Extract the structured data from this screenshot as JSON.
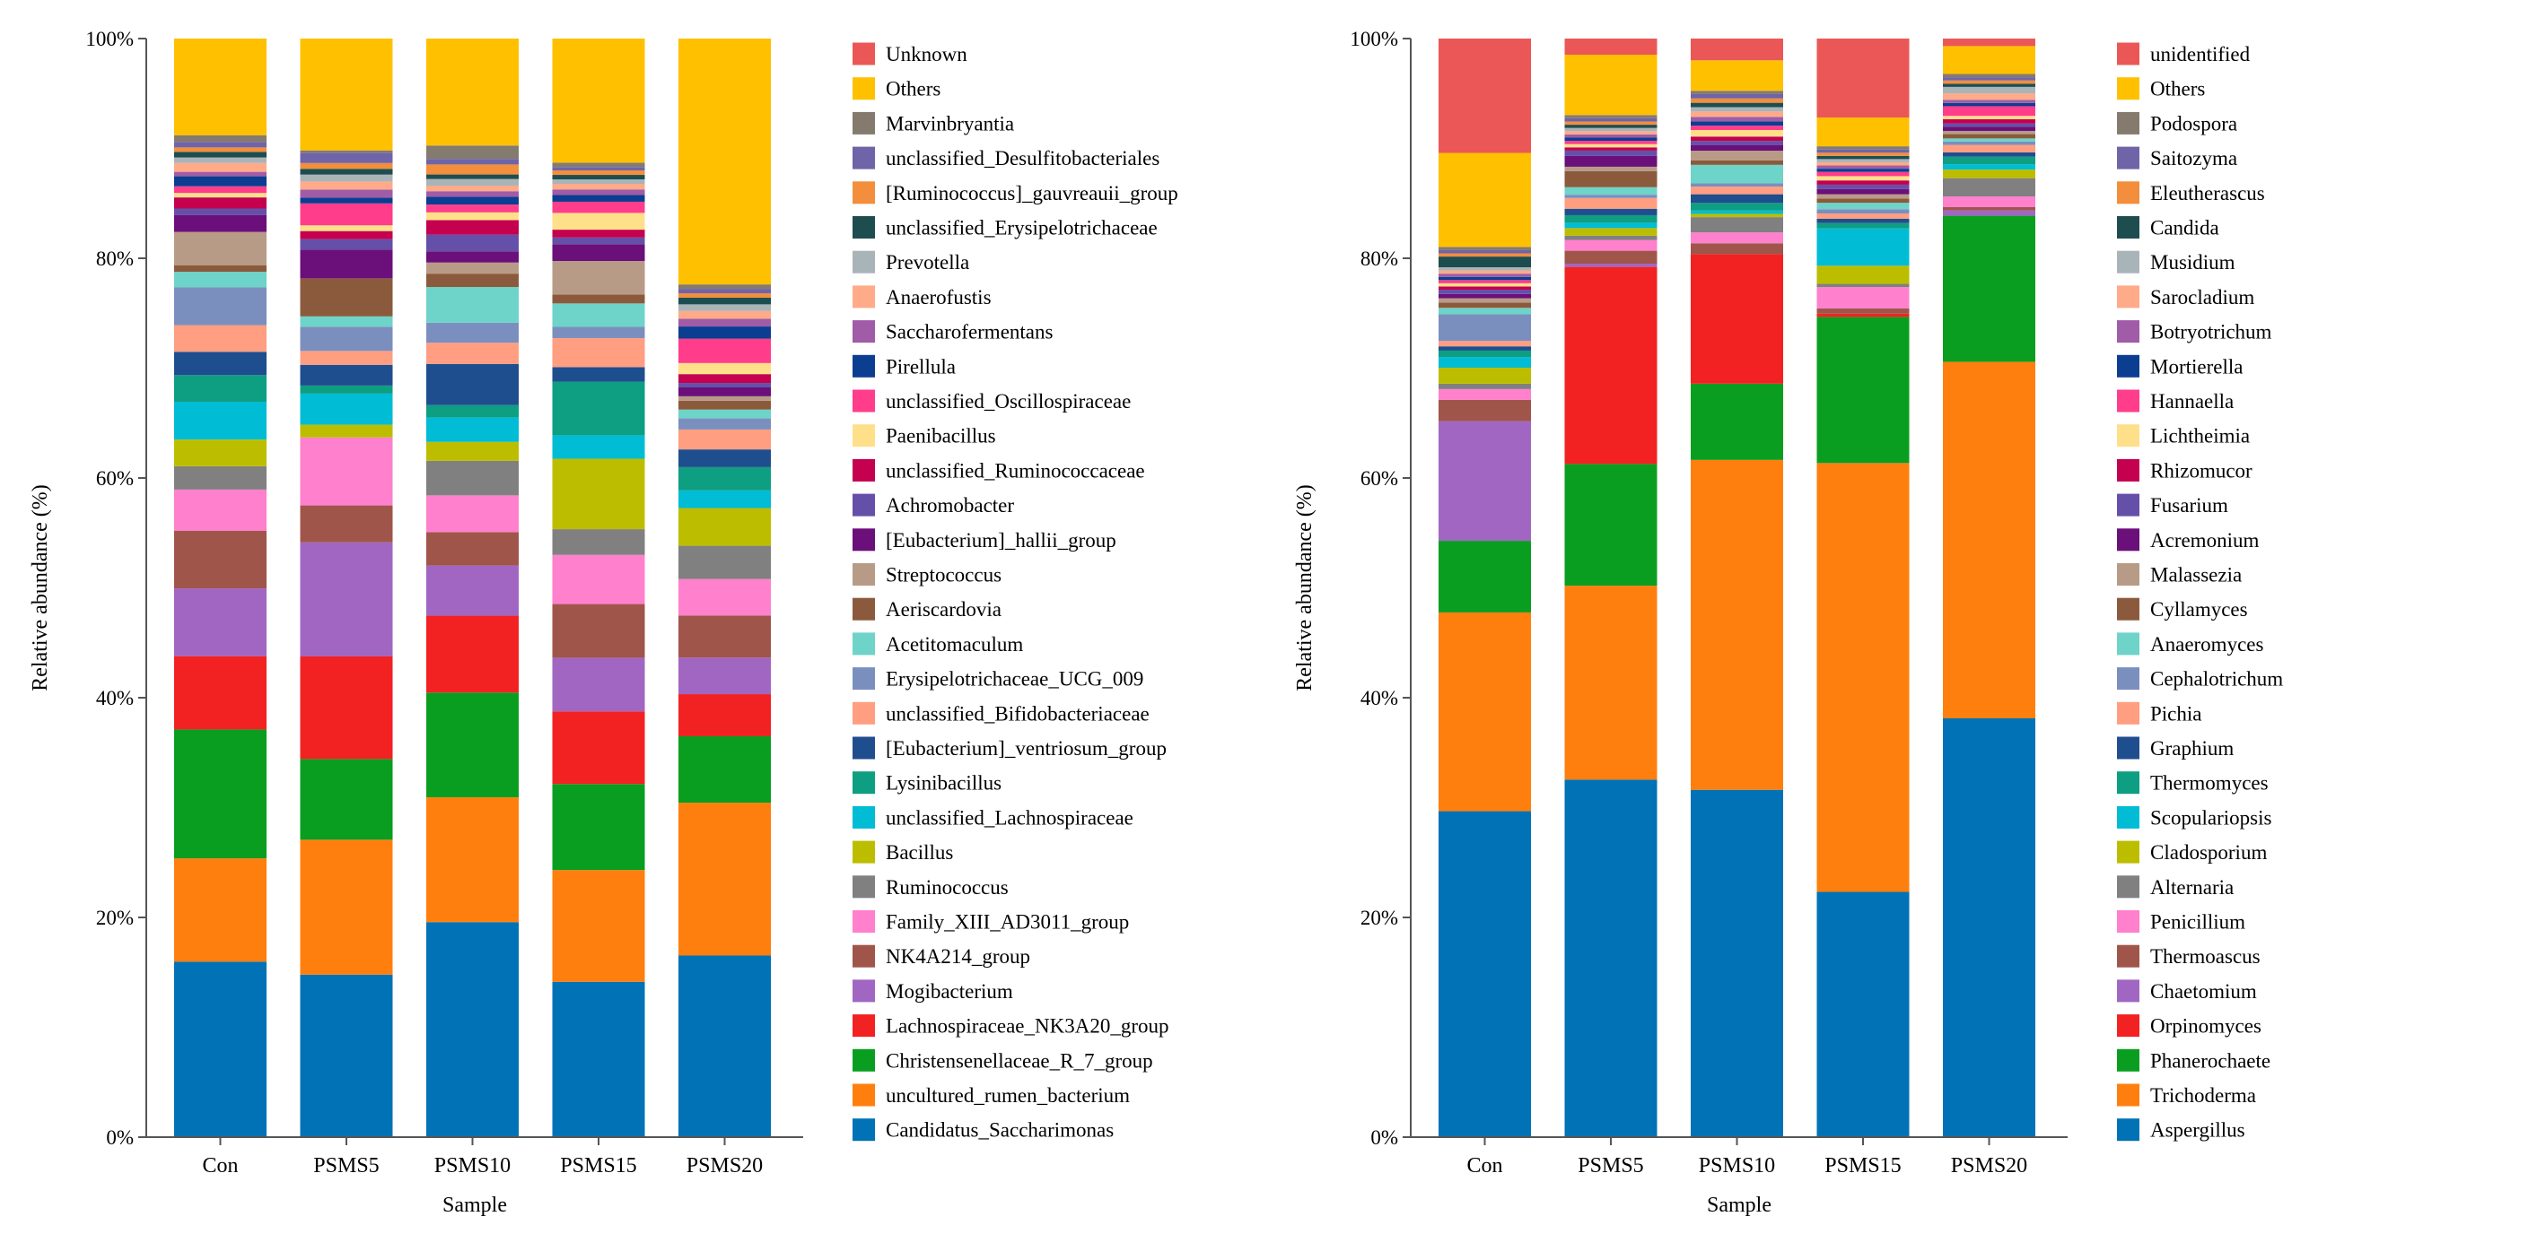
{
  "chart_data": [
    {
      "type": "bar",
      "stacked": true,
      "xlabel": "Sample",
      "ylabel": "Relative abundance (%)",
      "ylim": [
        0,
        100
      ],
      "yticks": [
        "0%",
        "20%",
        "40%",
        "60%",
        "80%",
        "100%"
      ],
      "legend_position": "right",
      "categories": [
        "Con",
        "PSMS5",
        "PSMS10",
        "PSMS15",
        "PSMS20"
      ],
      "series": [
        {
          "name": "Candidatus_Saccharimonas",
          "color": "#0072B5",
          "values": [
            15.8,
            14.1,
            19.3,
            13.9,
            16.4
          ]
        },
        {
          "name": "uncultured_rumen_bacterium",
          "color": "#FF7F0E",
          "values": [
            9.3,
            11.7,
            11.2,
            10.0,
            13.8
          ]
        },
        {
          "name": "Christensenellaceae_R_7_group",
          "color": "#0A9E20",
          "values": [
            11.6,
            7.0,
            9.4,
            7.7,
            6.0
          ]
        },
        {
          "name": "Lachnospiraceae_NK3A20_group",
          "color": "#F22222",
          "values": [
            6.6,
            8.9,
            6.9,
            6.5,
            3.8
          ]
        },
        {
          "name": "Mogibacterium",
          "color": "#A166C2",
          "values": [
            6.1,
            9.9,
            4.5,
            4.8,
            3.3
          ]
        },
        {
          "name": "NK4A214_group",
          "color": "#A0554B",
          "values": [
            5.2,
            3.2,
            3.0,
            4.8,
            3.8
          ]
        },
        {
          "name": "Family_XIII_AD3011_group",
          "color": "#FF80CC",
          "values": [
            3.7,
            5.9,
            3.3,
            4.4,
            3.3
          ]
        },
        {
          "name": "Ruminococcus",
          "color": "#808080",
          "values": [
            2.1,
            0,
            3.1,
            2.3,
            3.0
          ]
        },
        {
          "name": "Bacillus",
          "color": "#BDBD00",
          "values": [
            2.4,
            1.1,
            1.7,
            6.3,
            3.4
          ]
        },
        {
          "name": "unclassified_Lachnospiraceae",
          "color": "#00BCD4",
          "values": [
            3.4,
            2.7,
            2.2,
            2.1,
            1.6
          ]
        },
        {
          "name": "Lysinibacillus",
          "color": "#0E9E82",
          "values": [
            2.4,
            0.7,
            1.1,
            4.8,
            2.1
          ]
        },
        {
          "name": "[Eubacterium]_ventriosum_group",
          "color": "#1F4E8F",
          "values": [
            2.1,
            1.8,
            3.7,
            1.3,
            1.6
          ]
        },
        {
          "name": "unclassified_Bifidobacteriaceae",
          "color": "#FF9E80",
          "values": [
            2.4,
            1.2,
            1.9,
            2.6,
            1.8
          ]
        },
        {
          "name": "Erysipelotrichaceae_UCG_009",
          "color": "#7B8FBF",
          "values": [
            3.4,
            2.1,
            1.8,
            1.0,
            1.0
          ]
        },
        {
          "name": "Acetitomaculum",
          "color": "#6ED3C8",
          "values": [
            1.4,
            0.9,
            3.2,
            2.1,
            0.8
          ]
        },
        {
          "name": "Aeriscardovia",
          "color": "#8B5A3C",
          "values": [
            0.6,
            3.3,
            1.2,
            0.8,
            0.8
          ]
        },
        {
          "name": "Streptococcus",
          "color": "#B89B86",
          "values": [
            3.0,
            0,
            1.0,
            3.0,
            0.4
          ]
        },
        {
          "name": "[Eubacterium]_hallii_group",
          "color": "#6B0F7A",
          "values": [
            1.5,
            2.5,
            1.0,
            1.5,
            0.8
          ]
        },
        {
          "name": "Achromobacter",
          "color": "#6450A8",
          "values": [
            0.6,
            0.9,
            1.5,
            0.6,
            0.4
          ]
        },
        {
          "name": "unclassified_Ruminococcaceae",
          "color": "#C4004F",
          "values": [
            1.0,
            0.7,
            1.3,
            0.7,
            0.8
          ]
        },
        {
          "name": "Paenibacillus",
          "color": "#FFE08A",
          "values": [
            0.4,
            0.5,
            0.7,
            1.5,
            1.0
          ]
        },
        {
          "name": "unclassified_Oscillospiraceae",
          "color": "#FF3D8B",
          "values": [
            0.6,
            1.9,
            0.7,
            1.0,
            2.2
          ]
        },
        {
          "name": "Pirellula",
          "color": "#0B3D91",
          "values": [
            0.9,
            0.5,
            0.7,
            0.6,
            1.1
          ]
        },
        {
          "name": "Saccharofermentans",
          "color": "#A05CA6",
          "values": [
            0.4,
            0.7,
            0.5,
            0.5,
            0.7
          ]
        },
        {
          "name": "Anaerofustis",
          "color": "#FFAA88",
          "values": [
            0.8,
            0.7,
            0.5,
            0.5,
            0.7
          ]
        },
        {
          "name": "Prevotella",
          "color": "#A9B4B9",
          "values": [
            0.5,
            0.6,
            0.6,
            0.4,
            0.6
          ]
        },
        {
          "name": "unclassified_Erysipelotrichaceae",
          "color": "#1E4D4F",
          "values": [
            0.5,
            0.5,
            0.4,
            0.4,
            0.6
          ]
        },
        {
          "name": "[Ruminococcus]_gauvreauii_group",
          "color": "#F28E3C",
          "values": [
            0.4,
            0.5,
            0.9,
            0.4,
            0.4
          ]
        },
        {
          "name": "unclassified_Desulfitobacteriales",
          "color": "#6F64A8",
          "values": [
            0.5,
            0.9,
            0.5,
            0.3,
            0.4
          ]
        },
        {
          "name": "Marvinbryantia",
          "color": "#857A6E",
          "values": [
            0.6,
            0.2,
            1.2,
            0.4,
            0.4
          ]
        },
        {
          "name": "Others",
          "color": "#FFC000",
          "values": [
            8.7,
            9.7,
            9.6,
            11.1,
            22.2
          ]
        },
        {
          "name": "Unknown",
          "color": "#EB5757",
          "values": [
            0,
            0,
            0,
            0,
            0
          ]
        }
      ]
    },
    {
      "type": "bar",
      "stacked": true,
      "xlabel": "Sample",
      "ylabel": "Relative abundance (%)",
      "ylim": [
        0,
        100
      ],
      "yticks": [
        "0%",
        "20%",
        "40%",
        "60%",
        "80%",
        "100%"
      ],
      "legend_position": "right",
      "categories": [
        "Con",
        "PSMS5",
        "PSMS10",
        "PSMS15",
        "PSMS20"
      ],
      "series": [
        {
          "name": "Aspergillus",
          "color": "#0072B5",
          "values": [
            30.5,
            33.2,
            31.9,
            23.0,
            39.0
          ]
        },
        {
          "name": "Trichoderma",
          "color": "#FF7F0E",
          "values": [
            18.6,
            18.0,
            30.3,
            40.2,
            33.2
          ]
        },
        {
          "name": "Phanerochaete",
          "color": "#0A9E20",
          "values": [
            6.7,
            11.3,
            7.0,
            13.7,
            13.6
          ]
        },
        {
          "name": "Orpinomyces",
          "color": "#F22222",
          "values": [
            0,
            18.3,
            11.9,
            0.3,
            0
          ]
        },
        {
          "name": "Chaetomium",
          "color": "#A166C2",
          "values": [
            11.2,
            0.3,
            0,
            0,
            0.5
          ]
        },
        {
          "name": "Thermoascus",
          "color": "#A0554B",
          "values": [
            2.0,
            1.2,
            1.0,
            0.5,
            0.3
          ]
        },
        {
          "name": "Penicillium",
          "color": "#FF80CC",
          "values": [
            1.0,
            1.0,
            1.0,
            2.0,
            1.0
          ]
        },
        {
          "name": "Alternaria",
          "color": "#808080",
          "values": [
            0.5,
            0.4,
            1.4,
            0.3,
            1.7
          ]
        },
        {
          "name": "Cladosporium",
          "color": "#BDBD00",
          "values": [
            1.5,
            0.7,
            0.3,
            1.7,
            0.8
          ]
        },
        {
          "name": "Scopulariopsis",
          "color": "#00BCD4",
          "values": [
            1.0,
            0.5,
            0.3,
            3.5,
            0.5
          ]
        },
        {
          "name": "Thermomyces",
          "color": "#0E9E82",
          "values": [
            0.6,
            0.7,
            0.7,
            0.5,
            0.7
          ]
        },
        {
          "name": "Graphium",
          "color": "#1F4E8F",
          "values": [
            0.4,
            0.6,
            0.8,
            0.4,
            0.4
          ]
        },
        {
          "name": "Pichia",
          "color": "#FF9E80",
          "values": [
            0.5,
            1.0,
            0.7,
            0.5,
            0.7
          ]
        },
        {
          "name": "Cephalotrichum",
          "color": "#7B8FBF",
          "values": [
            2.5,
            0.3,
            0.3,
            0.4,
            0.3
          ]
        },
        {
          "name": "Anaeromyces",
          "color": "#6ED3C8",
          "values": [
            0.6,
            0.7,
            1.7,
            0.6,
            0.3
          ]
        },
        {
          "name": "Cyllamyces",
          "color": "#8B5A3C",
          "values": [
            0.5,
            1.5,
            0.4,
            0.4,
            0.4
          ]
        },
        {
          "name": "Malassezia",
          "color": "#B89B86",
          "values": [
            0.4,
            0.4,
            0.9,
            0.4,
            0.3
          ]
        },
        {
          "name": "Acremonium",
          "color": "#6B0F7A",
          "values": [
            0.4,
            1.0,
            0.5,
            0.5,
            0.4
          ]
        },
        {
          "name": "Fusarium",
          "color": "#6450A8",
          "values": [
            0.4,
            0.5,
            0.4,
            0.4,
            0.3
          ]
        },
        {
          "name": "Rhizomucor",
          "color": "#C4004F",
          "values": [
            0.3,
            0.3,
            0.4,
            0.4,
            0.4
          ]
        },
        {
          "name": "Lichtheimia",
          "color": "#FFE08A",
          "values": [
            0.3,
            0.3,
            0.6,
            0.4,
            0.3
          ]
        },
        {
          "name": "Hannaella",
          "color": "#FF3D8B",
          "values": [
            0.3,
            0.3,
            0.4,
            0.4,
            0.9
          ]
        },
        {
          "name": "Mortierella",
          "color": "#0B3D91",
          "values": [
            0.3,
            0.3,
            0.4,
            0.3,
            0.3
          ]
        },
        {
          "name": "Botryotrichum",
          "color": "#A05CA6",
          "values": [
            0.3,
            0.3,
            0.4,
            0.3,
            0.3
          ]
        },
        {
          "name": "Sarocladium",
          "color": "#FFAA88",
          "values": [
            0.3,
            0.3,
            0.5,
            0.3,
            0.6
          ]
        },
        {
          "name": "Musidium",
          "color": "#A9B4B9",
          "values": [
            0.3,
            0.3,
            0.4,
            0.3,
            0.6
          ]
        },
        {
          "name": "Candida",
          "color": "#1E4D4F",
          "values": [
            1.0,
            0.3,
            0.4,
            0.3,
            0.3
          ]
        },
        {
          "name": "Eleutherascus",
          "color": "#F28E3C",
          "values": [
            0.3,
            0.3,
            0.4,
            0.3,
            0.3
          ]
        },
        {
          "name": "Saitozyma",
          "color": "#6F64A8",
          "values": [
            0.3,
            0.3,
            0.4,
            0.3,
            0.3
          ]
        },
        {
          "name": "Podospora",
          "color": "#857A6E",
          "values": [
            0.3,
            0.3,
            0.3,
            0.3,
            0.3
          ]
        },
        {
          "name": "Others",
          "color": "#FFC000",
          "values": [
            8.8,
            5.6,
            2.8,
            2.7,
            2.6
          ]
        },
        {
          "name": "unidentified",
          "color": "#EB5757",
          "values": [
            10.7,
            1.5,
            2.0,
            7.4,
            0.7
          ]
        }
      ]
    }
  ]
}
